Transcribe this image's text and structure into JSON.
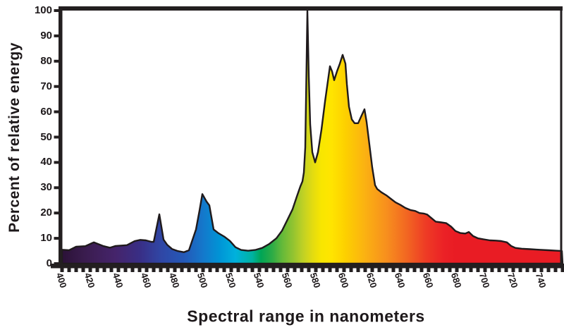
{
  "chart_data": {
    "type": "area",
    "title": "",
    "xlabel": "Spectral range in nanometers",
    "ylabel": "Percent of relative energy",
    "xlim": [
      400,
      755
    ],
    "ylim": [
      0,
      100
    ],
    "grid": false,
    "legend": null,
    "background": "#ffffff",
    "frame_color": "#231f20",
    "outline_color": "#1f1a1c",
    "y_ticks": [
      0,
      10,
      20,
      30,
      40,
      50,
      60,
      70,
      80,
      90,
      100
    ],
    "x_major_ticks": [
      400,
      420,
      440,
      460,
      480,
      500,
      520,
      540,
      560,
      580,
      600,
      620,
      640,
      660,
      680,
      700,
      720,
      740
    ],
    "x_minor_tick_step_nm": 5,
    "points": [
      [
        400,
        5.5
      ],
      [
        405,
        5.3
      ],
      [
        410,
        6.7
      ],
      [
        416.5,
        6.9
      ],
      [
        422.5,
        8.4
      ],
      [
        429,
        7
      ],
      [
        434,
        6.3
      ],
      [
        438,
        7
      ],
      [
        446,
        7.3
      ],
      [
        451.5,
        8.9
      ],
      [
        455.5,
        9.4
      ],
      [
        459.5,
        9.2
      ],
      [
        463.5,
        8.6
      ],
      [
        465,
        8.6
      ],
      [
        469,
        19.5
      ],
      [
        472,
        9.5
      ],
      [
        474.5,
        7.5
      ],
      [
        478,
        5.8
      ],
      [
        482,
        5
      ],
      [
        486.5,
        4.5
      ],
      [
        490,
        5.3
      ],
      [
        495,
        13.5
      ],
      [
        497.5,
        21
      ],
      [
        499.5,
        27.5
      ],
      [
        502.5,
        24.5
      ],
      [
        504.5,
        23
      ],
      [
        507.5,
        13.5
      ],
      [
        511,
        12
      ],
      [
        515,
        10.7
      ],
      [
        519,
        9
      ],
      [
        523,
        6.5
      ],
      [
        527,
        5.4
      ],
      [
        532,
        5.1
      ],
      [
        537,
        5.4
      ],
      [
        542,
        6.2
      ],
      [
        547,
        7.8
      ],
      [
        552,
        10
      ],
      [
        556,
        13
      ],
      [
        560,
        17.5
      ],
      [
        563.5,
        21.5
      ],
      [
        566.5,
        26.5
      ],
      [
        569,
        30.5
      ],
      [
        570.5,
        32.5
      ],
      [
        571.5,
        36
      ],
      [
        572.5,
        46
      ],
      [
        574,
        100
      ],
      [
        575,
        74
      ],
      [
        576,
        55
      ],
      [
        577.5,
        44
      ],
      [
        579.5,
        40
      ],
      [
        581.5,
        44
      ],
      [
        584,
        53
      ],
      [
        586.5,
        64
      ],
      [
        588.5,
        72
      ],
      [
        590,
        78
      ],
      [
        591.5,
        76
      ],
      [
        593,
        72.5
      ],
      [
        595,
        76
      ],
      [
        597,
        79
      ],
      [
        599,
        82.5
      ],
      [
        601,
        79
      ],
      [
        602,
        71
      ],
      [
        603.5,
        62
      ],
      [
        605.5,
        57
      ],
      [
        607.5,
        55.5
      ],
      [
        610,
        55.5
      ],
      [
        612,
        58
      ],
      [
        614.5,
        61
      ],
      [
        616,
        56
      ],
      [
        618,
        47
      ],
      [
        620,
        38
      ],
      [
        622,
        31
      ],
      [
        623.5,
        29.5
      ],
      [
        626.5,
        28.2
      ],
      [
        630,
        27
      ],
      [
        633.5,
        25.5
      ],
      [
        636.5,
        24.2
      ],
      [
        640,
        23.2
      ],
      [
        643.5,
        22
      ],
      [
        647,
        21.2
      ],
      [
        650.5,
        20.8
      ],
      [
        653.5,
        20
      ],
      [
        656.5,
        19.8
      ],
      [
        659,
        19.4
      ],
      [
        662,
        18
      ],
      [
        665,
        16.6
      ],
      [
        669,
        16.3
      ],
      [
        672.5,
        16
      ],
      [
        676,
        14.6
      ],
      [
        679,
        12.9
      ],
      [
        682.5,
        12.1
      ],
      [
        686,
        11.9
      ],
      [
        688.5,
        12.5
      ],
      [
        691.5,
        10.9
      ],
      [
        695,
        10
      ],
      [
        699,
        9.6
      ],
      [
        703.5,
        9.2
      ],
      [
        707.5,
        9.1
      ],
      [
        711.5,
        8.9
      ],
      [
        715.5,
        8.4
      ],
      [
        718.5,
        7
      ],
      [
        721.5,
        6.2
      ],
      [
        726,
        5.9
      ],
      [
        732,
        5.7
      ],
      [
        738.5,
        5.5
      ],
      [
        745,
        5.3
      ],
      [
        751,
        5.1
      ],
      [
        754.5,
        5
      ]
    ],
    "spectrum_gradient": [
      {
        "nm": 400,
        "color": "#2b1237"
      },
      {
        "nm": 416,
        "color": "#3a1c4e"
      },
      {
        "nm": 438,
        "color": "#45246b"
      },
      {
        "nm": 455,
        "color": "#392e85"
      },
      {
        "nm": 470,
        "color": "#3046a5"
      },
      {
        "nm": 487,
        "color": "#2459b8"
      },
      {
        "nm": 500,
        "color": "#1478cb"
      },
      {
        "nm": 512,
        "color": "#0095d6"
      },
      {
        "nm": 523,
        "color": "#00b1dc"
      },
      {
        "nm": 535,
        "color": "#00b2a0"
      },
      {
        "nm": 541,
        "color": "#00a556"
      },
      {
        "nm": 549,
        "color": "#2cab46"
      },
      {
        "nm": 556,
        "color": "#63b93a"
      },
      {
        "nm": 564,
        "color": "#93c430"
      },
      {
        "nm": 571,
        "color": "#c0d125"
      },
      {
        "nm": 578,
        "color": "#e4dc10"
      },
      {
        "nm": 584,
        "color": "#f8e600"
      },
      {
        "nm": 591,
        "color": "#ffe500"
      },
      {
        "nm": 601,
        "color": "#fdd000"
      },
      {
        "nm": 615,
        "color": "#fbb112"
      },
      {
        "nm": 631,
        "color": "#f78d1e"
      },
      {
        "nm": 645,
        "color": "#f26522"
      },
      {
        "nm": 658,
        "color": "#ee3b25"
      },
      {
        "nm": 671,
        "color": "#eb2126"
      },
      {
        "nm": 679,
        "color": "#e91c24"
      },
      {
        "nm": 755,
        "color": "#e91c24"
      }
    ]
  }
}
